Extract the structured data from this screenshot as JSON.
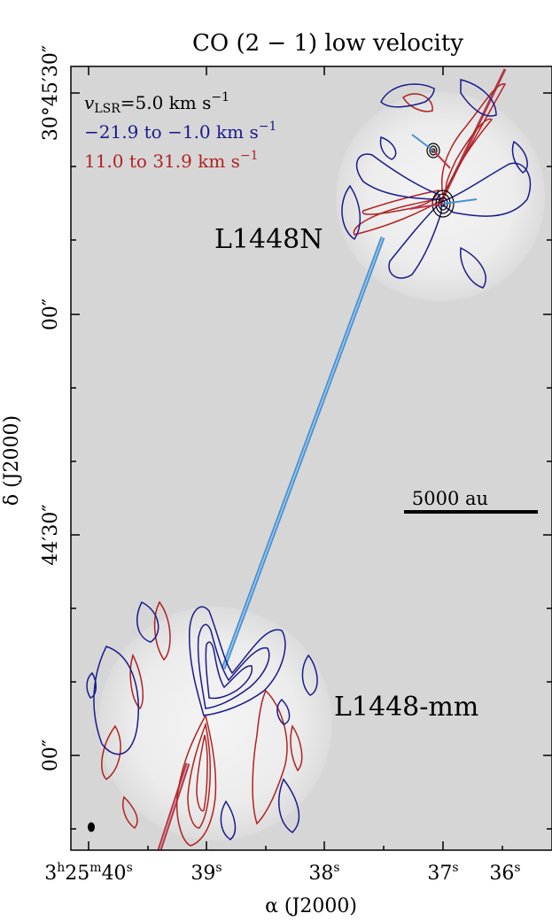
{
  "chart_data": {
    "type": "contour map",
    "title": "CO (2 − 1) low velocity",
    "xlabel": "α (J2000)",
    "ylabel": "δ (J2000)",
    "x_ticks": [
      {
        "label": "3h25m40s",
        "prefix": "3",
        "h": "h",
        "mid": "25",
        "m": "m",
        "num": "40",
        "unit": "s"
      },
      {
        "label": "39s",
        "num": "39",
        "unit": "s"
      },
      {
        "label": "38s",
        "num": "38",
        "unit": "s"
      },
      {
        "label": "37s",
        "num": "37",
        "unit": "s"
      },
      {
        "label": "36s",
        "num": "36",
        "unit": "s"
      }
    ],
    "y_ticks": [
      {
        "label": "30°45′30″",
        "text": "30°45′30″"
      },
      {
        "label": "00″",
        "text": "00″"
      },
      {
        "label": "44′30″",
        "text": "44′30″"
      },
      {
        "label": "00″",
        "text": "00″"
      }
    ],
    "legend": {
      "systemic": {
        "v": "v",
        "sub": "LSR",
        "rest": "=5.0 km s",
        "exp": "−1"
      },
      "blue": {
        "text": "−21.9 to −1.0 km s",
        "exp": "−1",
        "color": "#1a1a8c"
      },
      "red": {
        "text": "11.0 to 31.9 km s",
        "exp": "−1",
        "color": "#b22222"
      }
    },
    "sources": [
      {
        "name": "L1448N"
      },
      {
        "name": "L1448-mm"
      }
    ],
    "scalebar": {
      "label": "5000 au",
      "length_au": 5000
    },
    "colors": {
      "blue": "#1a1a8c",
      "red": "#b22222",
      "background": "#d6d6d6",
      "jet": "#4a90d0"
    }
  }
}
